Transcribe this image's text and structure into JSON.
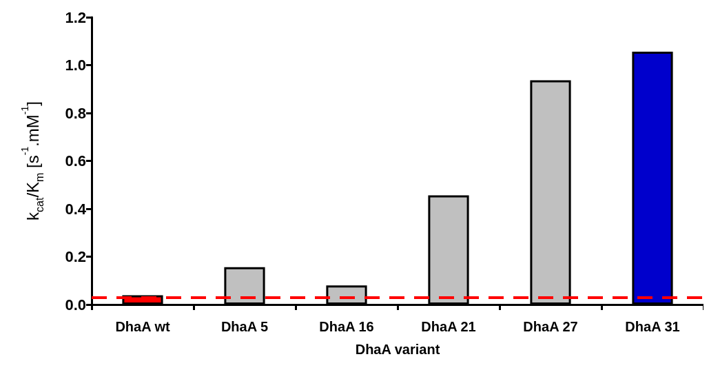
{
  "chart_data": {
    "type": "bar",
    "xlabel": "DhaA variant",
    "ylabel": "k$_{cat}$/K$_{m}$ [s$^{-1}$.mM$^{-1}$]",
    "categories": [
      "DhaA wt",
      "DhaA 5",
      "DhaA 16",
      "DhaA 21",
      "DhaA 27",
      "DhaA 31"
    ],
    "values": [
      0.039,
      0.156,
      0.08,
      0.456,
      0.937,
      1.056
    ],
    "colors": [
      "#ff0000",
      "#c0c0c0",
      "#c0c0c0",
      "#c0c0c0",
      "#c0c0c0",
      "#0000cc"
    ],
    "ylim": [
      0,
      1.2
    ],
    "yticks": [
      {
        "value": 0,
        "label": "0.0"
      },
      0.2,
      0.4,
      0.6,
      0.8,
      {
        "value": 1,
        "label": "1.0"
      },
      1.2
    ],
    "ref_lines": [
      {
        "axis": "y",
        "value": 0.034,
        "color": "#ff0000",
        "line_style": "dashed"
      }
    ],
    "grid": false
  }
}
